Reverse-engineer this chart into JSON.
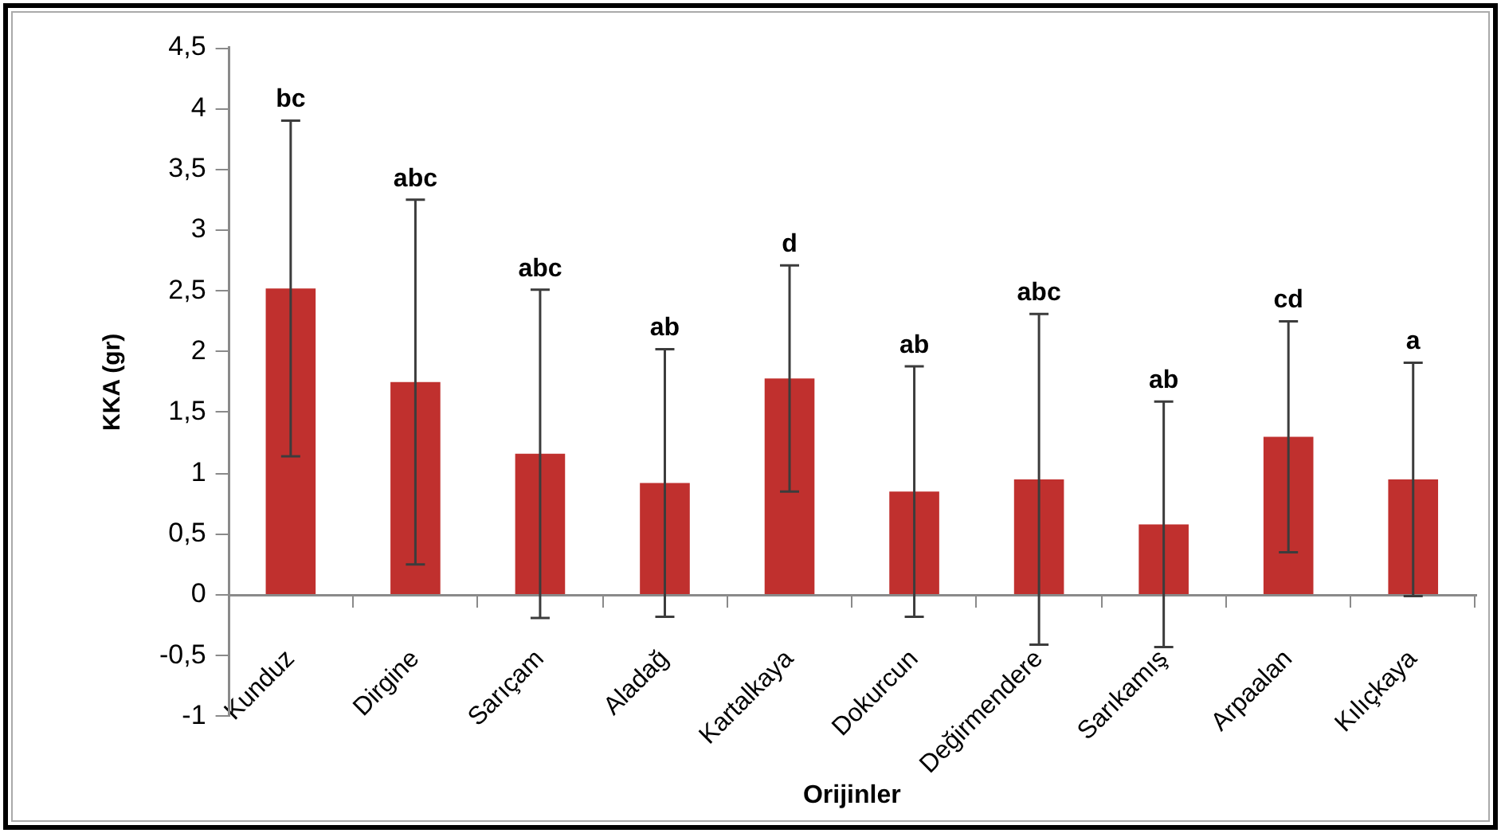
{
  "chart_data": {
    "type": "bar",
    "xlabel": "Orijinler",
    "ylabel": "KKA (gr)",
    "categories": [
      "Kunduz",
      "Dirgine",
      "Sarıçam",
      "Aladağ",
      "Kartalkaya",
      "Dokurcun",
      "Değirmendere",
      "Sarıkamış",
      "Arpaalan",
      "Kılıçkaya"
    ],
    "values": [
      2.52,
      1.75,
      1.16,
      0.92,
      1.78,
      0.85,
      0.95,
      0.58,
      1.3,
      0.95
    ],
    "errors": [
      1.38,
      1.5,
      1.35,
      1.1,
      0.93,
      1.03,
      1.36,
      1.01,
      0.95,
      0.96
    ],
    "color": "#c0302e",
    "ylim": [
      -1,
      4.5
    ],
    "yticks": [
      -1,
      {
        "value": -0.5,
        "label": "-0,5"
      },
      0,
      {
        "value": 0.5,
        "label": "0,5"
      },
      1,
      {
        "value": 1.5,
        "label": "1,5"
      },
      2,
      {
        "value": 2.5,
        "label": "2,5"
      },
      3,
      {
        "value": 3.5,
        "label": "3,5"
      },
      4,
      {
        "value": 4.5,
        "label": "4,5"
      }
    ],
    "annotations": [
      {
        "text": "bc",
        "x": "Kunduz",
        "y": 3.9
      },
      {
        "text": "abc",
        "x": "Dirgine",
        "y": 3.25
      },
      {
        "text": "abc",
        "x": "Sarıçam",
        "y": 2.51
      },
      {
        "text": "ab",
        "x": "Aladağ",
        "y": 2.02
      },
      {
        "text": "d",
        "x": "Kartalkaya",
        "y": 2.71
      },
      {
        "text": "ab",
        "x": "Dokurcun",
        "y": 1.88
      },
      {
        "text": "abc",
        "x": "Değirmendere",
        "y": 2.31
      },
      {
        "text": "ab",
        "x": "Sarıkamış",
        "y": 1.59
      },
      {
        "text": "cd",
        "x": "Arpaalan",
        "y": 2.25
      },
      {
        "text": "a",
        "x": "Kılıçkaya",
        "y": 1.91
      }
    ]
  }
}
